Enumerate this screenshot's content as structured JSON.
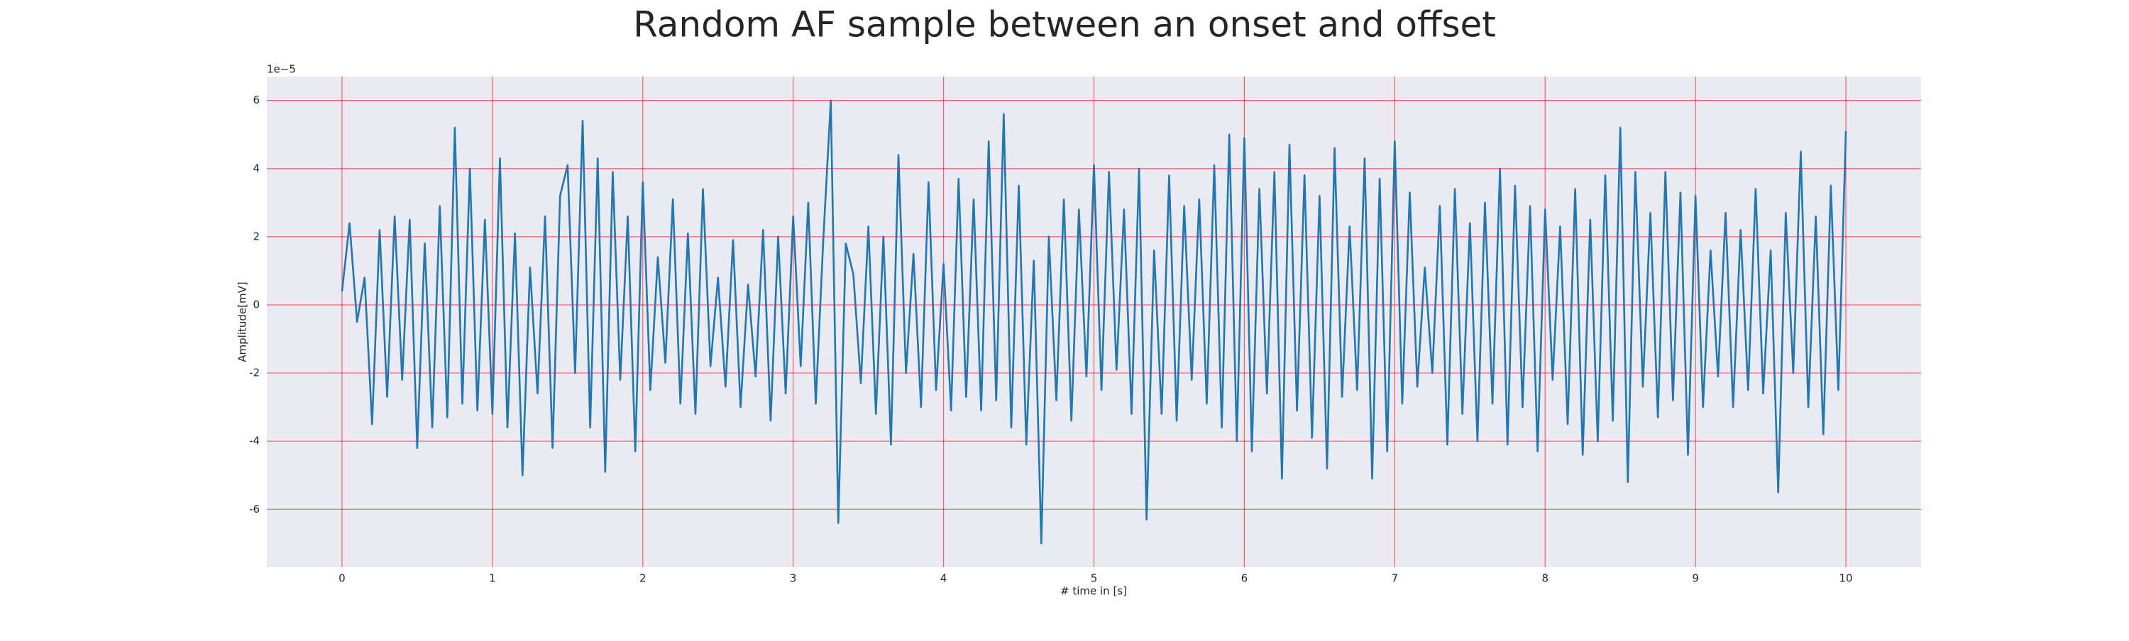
{
  "chart_data": {
    "type": "line",
    "title": "Random AF sample between an onset and offset",
    "xlabel": "# time in [s]",
    "ylabel": "Amplitude[mV]",
    "offset_text": "1e−5",
    "color": "#1f77b4",
    "grid": true,
    "grid_color": "#ff0000",
    "xlim": [
      -0.5,
      10.5
    ],
    "xticks": [
      0,
      1,
      2,
      3,
      4,
      5,
      6,
      7,
      8,
      9,
      10
    ],
    "ylim": [
      -7.7,
      6.7
    ],
    "yticks": [
      -6,
      -4,
      -2,
      0,
      2,
      4,
      6
    ],
    "x": [
      0,
      0.05,
      0.1,
      0.15,
      0.2,
      0.25,
      0.3,
      0.35,
      0.4,
      0.45,
      0.5,
      0.55,
      0.6,
      0.65,
      0.7,
      0.75,
      0.8,
      0.85,
      0.9,
      0.95,
      1,
      1.05,
      1.1,
      1.15,
      1.2,
      1.25,
      1.3,
      1.35,
      1.4,
      1.45,
      1.5,
      1.55,
      1.6,
      1.65,
      1.7,
      1.75,
      1.8,
      1.85,
      1.9,
      1.95,
      2,
      2.05,
      2.1,
      2.15,
      2.2,
      2.25,
      2.3,
      2.35,
      2.4,
      2.45,
      2.5,
      2.55,
      2.6,
      2.65,
      2.7,
      2.75,
      2.8,
      2.85,
      2.9,
      2.95,
      3,
      3.05,
      3.1,
      3.15,
      3.2,
      3.25,
      3.3,
      3.35,
      3.4,
      3.45,
      3.5,
      3.55,
      3.6,
      3.65,
      3.7,
      3.75,
      3.8,
      3.85,
      3.9,
      3.95,
      4,
      4.05,
      4.1,
      4.15,
      4.2,
      4.25,
      4.3,
      4.35,
      4.4,
      4.45,
      4.5,
      4.55,
      4.6,
      4.65,
      4.7,
      4.75,
      4.8,
      4.85,
      4.9,
      4.95,
      5,
      5.05,
      5.1,
      5.15,
      5.2,
      5.25,
      5.3,
      5.35,
      5.4,
      5.45,
      5.5,
      5.55,
      5.6,
      5.65,
      5.7,
      5.75,
      5.8,
      5.85,
      5.9,
      5.95,
      6,
      6.05,
      6.1,
      6.15,
      6.2,
      6.25,
      6.3,
      6.35,
      6.4,
      6.45,
      6.5,
      6.55,
      6.6,
      6.65,
      6.7,
      6.75,
      6.8,
      6.85,
      6.9,
      6.95,
      7,
      7.05,
      7.1,
      7.15,
      7.2,
      7.25,
      7.3,
      7.35,
      7.4,
      7.45,
      7.5,
      7.55,
      7.6,
      7.65,
      7.7,
      7.75,
      7.8,
      7.85,
      7.9,
      7.95,
      8,
      8.05,
      8.1,
      8.15,
      8.2,
      8.25,
      8.3,
      8.35,
      8.4,
      8.45,
      8.5,
      8.55,
      8.6,
      8.65,
      8.7,
      8.75,
      8.8,
      8.85,
      8.9,
      8.95,
      9,
      9.05,
      9.1,
      9.15,
      9.2,
      9.25,
      9.3,
      9.35,
      9.4,
      9.45,
      9.5,
      9.55,
      9.6,
      9.65,
      9.7,
      9.75,
      9.8,
      9.85,
      9.9,
      9.95,
      10
    ],
    "values": [
      0.4,
      2.4,
      -0.5,
      0.8,
      -3.5,
      2.2,
      -2.7,
      2.6,
      -2.2,
      2.5,
      -4.2,
      1.8,
      -3.6,
      2.9,
      -3.3,
      5.2,
      -2.9,
      4.0,
      -3.1,
      2.5,
      -3.2,
      4.3,
      -3.6,
      2.1,
      -5.0,
      1.1,
      -2.6,
      2.6,
      -4.2,
      3.2,
      4.1,
      -2.0,
      5.4,
      -3.6,
      4.3,
      -4.9,
      3.9,
      -2.2,
      2.6,
      -4.3,
      3.6,
      -2.5,
      1.4,
      -1.7,
      3.1,
      -2.9,
      2.1,
      -3.2,
      3.4,
      -1.8,
      0.8,
      -2.4,
      1.9,
      -3.0,
      0.6,
      -2.1,
      2.2,
      -3.4,
      2.0,
      -2.6,
      2.6,
      -1.8,
      3.0,
      -2.9,
      1.9,
      6.0,
      -6.4,
      1.8,
      0.9,
      -2.3,
      2.3,
      -3.2,
      2.0,
      -4.1,
      4.4,
      -2.0,
      1.5,
      -3.0,
      3.6,
      -2.5,
      1.2,
      -3.1,
      3.7,
      -2.7,
      3.1,
      -3.1,
      4.8,
      -2.8,
      5.6,
      -3.6,
      3.5,
      -4.1,
      1.3,
      -7.0,
      2.0,
      -2.8,
      3.1,
      -3.4,
      2.8,
      -2.1,
      4.1,
      -2.5,
      3.9,
      -1.9,
      2.8,
      -3.2,
      4.0,
      -6.3,
      1.6,
      -3.2,
      3.8,
      -3.4,
      2.9,
      -2.2,
      3.1,
      -2.9,
      4.1,
      -3.6,
      5.0,
      -4.0,
      4.9,
      -4.3,
      3.4,
      -2.6,
      3.9,
      -5.1,
      4.7,
      -3.1,
      3.8,
      -3.9,
      3.2,
      -4.8,
      4.6,
      -2.7,
      2.3,
      -2.5,
      4.3,
      -5.1,
      3.7,
      -4.3,
      4.8,
      -2.9,
      3.3,
      -2.4,
      1.1,
      -2.0,
      2.9,
      -4.1,
      3.4,
      -3.2,
      2.4,
      -4.0,
      3.0,
      -2.9,
      4.0,
      -4.1,
      3.5,
      -3.0,
      2.9,
      -4.3,
      2.8,
      -2.2,
      2.3,
      -3.5,
      3.4,
      -4.4,
      2.5,
      -4.0,
      3.8,
      -3.4,
      5.2,
      -5.2,
      3.9,
      -2.4,
      2.7,
      -3.3,
      3.9,
      -2.8,
      3.3,
      -4.4,
      3.2,
      -3.0,
      1.6,
      -2.1,
      2.7,
      -3.0,
      2.2,
      -2.5,
      3.4,
      -2.6,
      1.6,
      -5.5,
      2.7,
      -2.0,
      4.5,
      -3.0,
      2.6,
      -3.8,
      3.5,
      -2.5,
      5.1
    ]
  }
}
